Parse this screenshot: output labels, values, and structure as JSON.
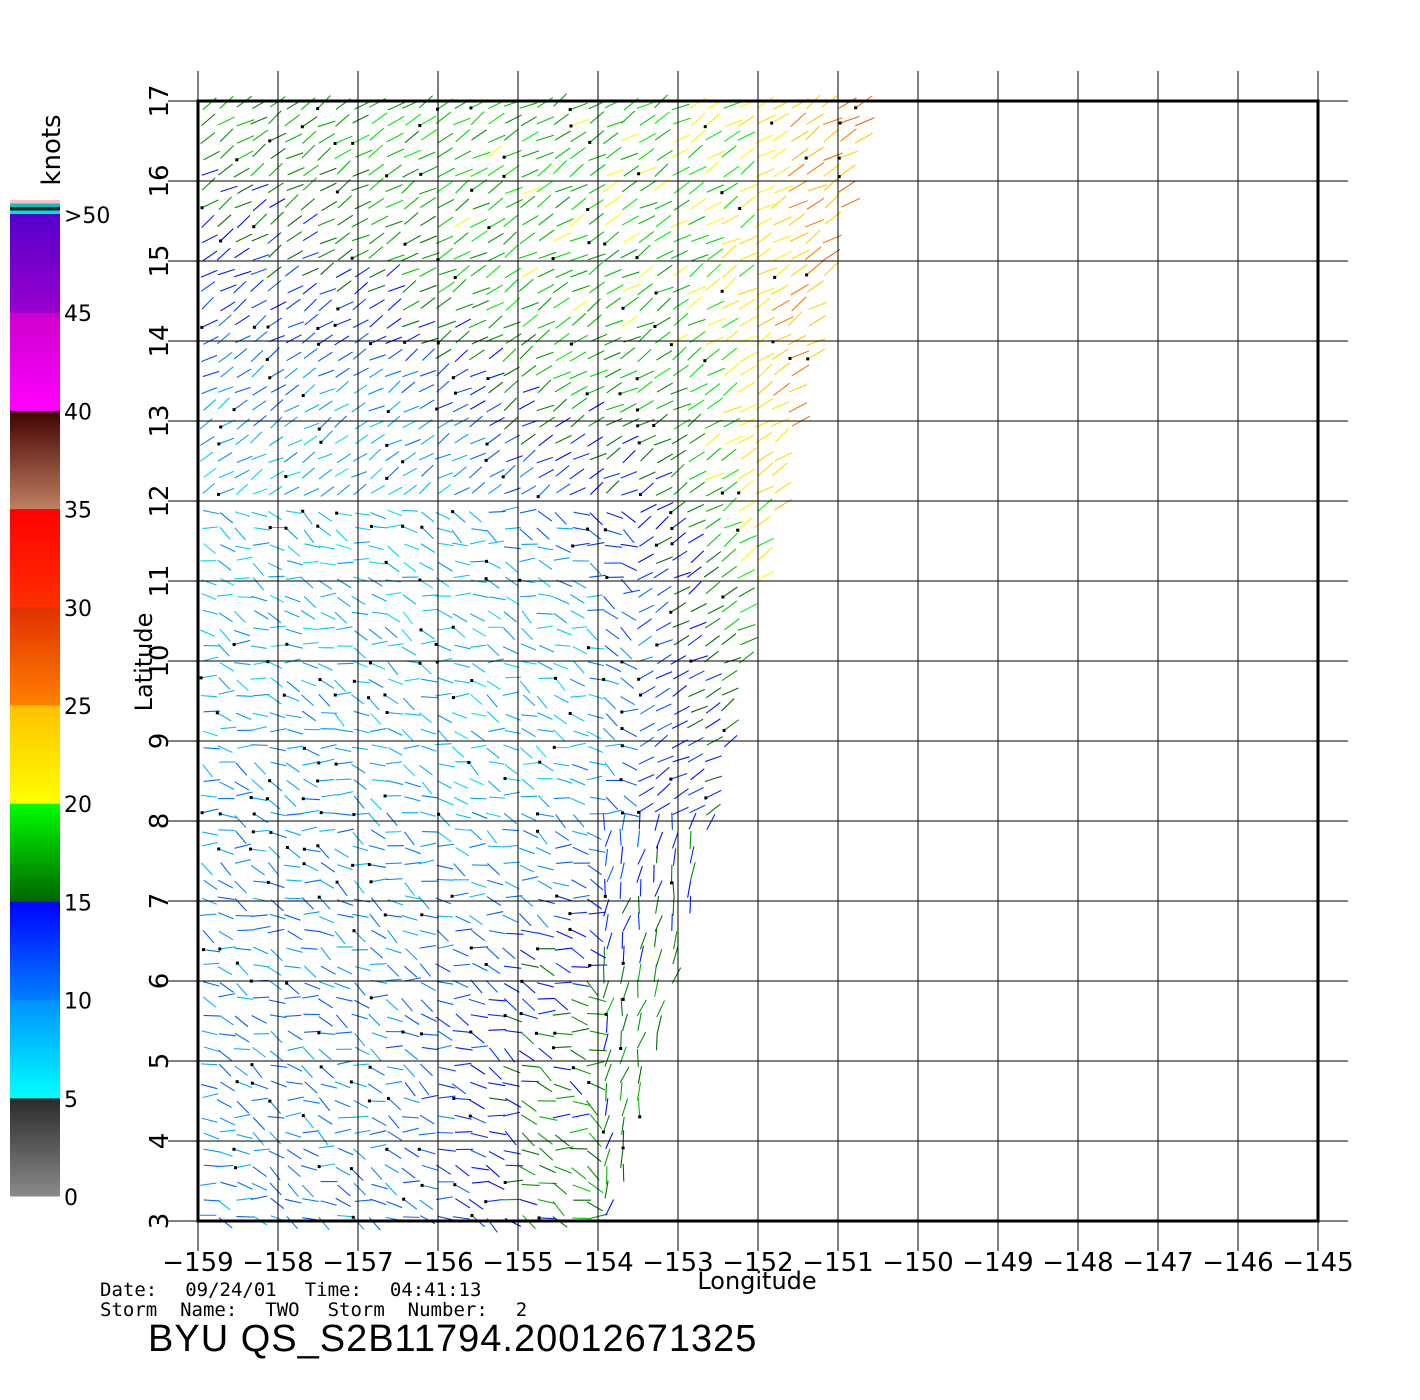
{
  "chart_data": {
    "type": "scatter",
    "title": "",
    "xlabel": "Longitude",
    "ylabel": "Latitude",
    "xlim": [
      -159,
      -145
    ],
    "ylim": [
      3,
      17
    ],
    "x_ticks": [
      "−159",
      "−158",
      "−157",
      "−156",
      "−155",
      "−154",
      "−153",
      "−152",
      "−151",
      "−150",
      "−149",
      "−148",
      "−147",
      "−146",
      "−145"
    ],
    "y_ticks": [
      "3",
      "4",
      "5",
      "6",
      "7",
      "8",
      "9",
      "10",
      "11",
      "12",
      "13",
      "14",
      "15",
      "16",
      "17"
    ],
    "grid": true,
    "colorbar": {
      "label": "knots",
      "ticks": [
        "0",
        "5",
        "10",
        "15",
        "20",
        "25",
        "30",
        "35",
        "40",
        "45",
        ">50"
      ],
      "bands": [
        {
          "range": [
            0,
            5
          ],
          "colors": [
            "#8a8a8a",
            "#2a2a2a"
          ]
        },
        {
          "range": [
            5,
            10
          ],
          "colors": [
            "#00ffff",
            "#0090ff"
          ]
        },
        {
          "range": [
            10,
            15
          ],
          "colors": [
            "#0080ff",
            "#0000ff"
          ]
        },
        {
          "range": [
            15,
            20
          ],
          "colors": [
            "#006400",
            "#00ff00"
          ]
        },
        {
          "range": [
            20,
            25
          ],
          "colors": [
            "#ffff00",
            "#ffc000"
          ]
        },
        {
          "range": [
            25,
            30
          ],
          "colors": [
            "#ff8000",
            "#e03000"
          ]
        },
        {
          "range": [
            30,
            35
          ],
          "colors": [
            "#ff3000",
            "#ff0000"
          ]
        },
        {
          "range": [
            35,
            40
          ],
          "colors": [
            "#c08060",
            "#400000"
          ]
        },
        {
          "range": [
            40,
            45
          ],
          "colors": [
            "#ff00ff",
            "#cc00cc"
          ]
        },
        {
          "range": [
            45,
            50
          ],
          "colors": [
            "#9900cc",
            "#5500cc"
          ]
        }
      ],
      "top_stripes": [
        "#ffc0c0",
        "#00c0c0",
        "#202020",
        "#00e0e0"
      ]
    },
    "swath": {
      "note_regions": [
        {
          "lon": [
            -159,
            -157.5
          ],
          "lat": [
            14,
            15.5
          ],
          "speed": 12
        },
        {
          "lon": [
            -159,
            -156
          ],
          "lat": [
            3,
            9
          ],
          "speed": 10
        },
        {
          "lon": [
            -159,
            -155
          ],
          "lat": [
            15,
            17
          ],
          "speed": 18
        },
        {
          "lon": [
            -155,
            -152
          ],
          "lat": [
            12,
            17
          ],
          "speed": 19
        },
        {
          "lon": [
            -159,
            -156
          ],
          "lat": [
            9,
            13
          ],
          "speed": 8
        },
        {
          "lon": [
            -156,
            -153
          ],
          "lat": [
            7,
            12
          ],
          "speed": 7
        },
        {
          "lon": [
            -153.5,
            -151.5
          ],
          "lat": [
            5,
            12
          ],
          "speed": 16
        },
        {
          "lon": [
            -152,
            -150.5
          ],
          "lat": [
            9,
            16
          ],
          "speed": 27
        },
        {
          "lon": [
            -155,
            -152.5
          ],
          "lat": [
            3,
            7
          ],
          "speed": 17
        }
      ],
      "edges": {
        "left_lon": -159,
        "right_edge": [
          [
            -150.6,
            17
          ],
          [
            -151,
            15.5
          ],
          [
            -152,
            11
          ],
          [
            -153,
            6.1
          ],
          [
            -153.8,
            3
          ]
        ]
      }
    }
  },
  "footer": {
    "date_label": "Date:",
    "date": "09/24/01",
    "time_label": "Time:",
    "time": "04:41:13",
    "storm_name_label": "Storm  Name:",
    "storm_name": "TWO",
    "storm_number_label": "Storm  Number:",
    "storm_number": "2",
    "product": "BYU  QS_S2B11794.20012671325"
  }
}
